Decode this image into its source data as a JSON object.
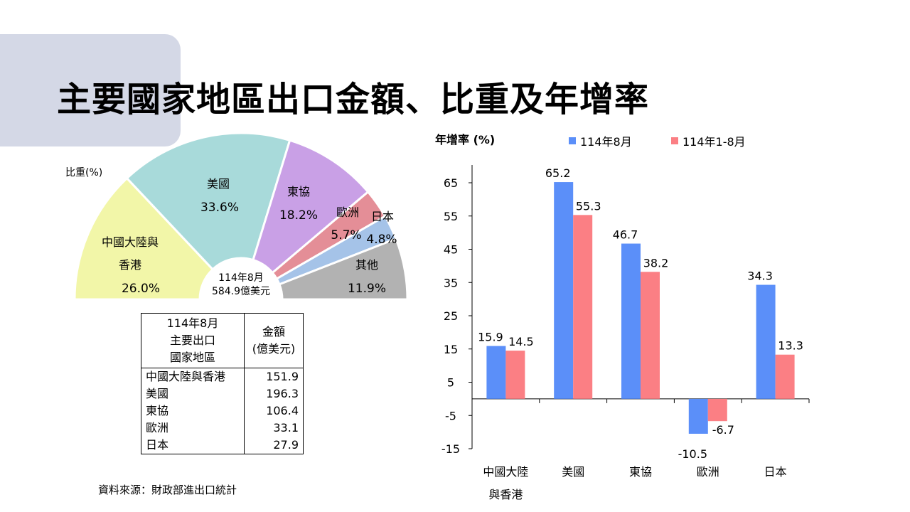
{
  "title": "主要國家地區出口金額、比重及年增率",
  "colors": {
    "blue": "#5b8ff9",
    "red": "#fb7f84",
    "pie": [
      "#f2f6a8",
      "#a8dada",
      "#c9a0e6",
      "#e48e97",
      "#a5c3e8",
      "#b2b2b2"
    ]
  },
  "pie": {
    "unit_label": "比重(%)",
    "center_line1": "114年8月",
    "center_line2": "584.9億美元",
    "slices": [
      {
        "name_lines": [
          "中國大陸與",
          "香港"
        ],
        "pct": "26.0%",
        "value": 26.0
      },
      {
        "name_lines": [
          "美國"
        ],
        "pct": "33.6%",
        "value": 33.6
      },
      {
        "name_lines": [
          "東協"
        ],
        "pct": "18.2%",
        "value": 18.2
      },
      {
        "name_lines": [
          "歐洲"
        ],
        "pct": "5.7%",
        "value": 5.7
      },
      {
        "name_lines": [
          "日本"
        ],
        "pct": "4.8%",
        "value": 4.8
      },
      {
        "name_lines": [
          "其他"
        ],
        "pct": "11.9%",
        "value": 11.9
      }
    ]
  },
  "table": {
    "header_left": [
      "114年8月",
      "主要出口",
      "國家地區"
    ],
    "header_right": [
      "金額",
      "(億美元)"
    ],
    "rows": [
      {
        "name": "中國大陸與香港",
        "value": "151.9"
      },
      {
        "name": "美國",
        "value": "196.3"
      },
      {
        "name": "東協",
        "value": "106.4"
      },
      {
        "name": "歐洲",
        "value": "33.1"
      },
      {
        "name": "日本",
        "value": "27.9"
      }
    ]
  },
  "source": "資料來源：財政部進出口統計",
  "chart_data": {
    "type": "bar",
    "ylabel": "年增率 (%)",
    "ylim": [
      -15,
      65
    ],
    "yticks": [
      65,
      55,
      45,
      35,
      25,
      15,
      5,
      -5,
      -15
    ],
    "categories": [
      [
        "中國大陸",
        "與香港"
      ],
      [
        "美國"
      ],
      [
        "東協"
      ],
      [
        "歐洲"
      ],
      [
        "日本"
      ]
    ],
    "series": [
      {
        "name": "114年8月",
        "values": [
          15.9,
          65.2,
          46.7,
          -10.5,
          34.3
        ]
      },
      {
        "name": "114年1-8月",
        "values": [
          14.5,
          55.3,
          38.2,
          -6.7,
          13.3
        ]
      }
    ],
    "legend_position": "top",
    "grid": false
  }
}
